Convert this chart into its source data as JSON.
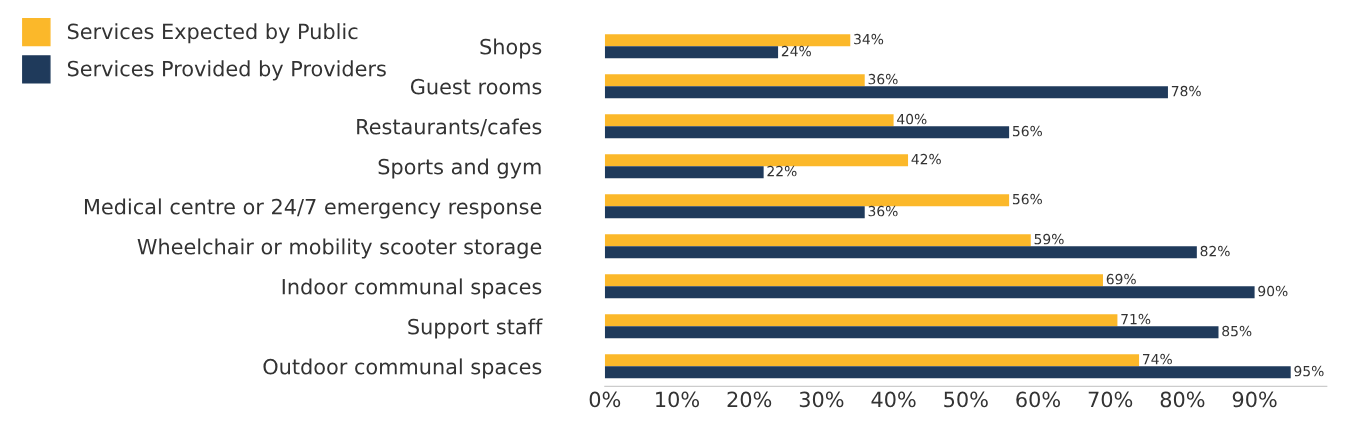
{
  "chart_data": {
    "type": "bar",
    "orientation": "horizontal",
    "categories": [
      "Shops",
      "Guest rooms",
      "Restaurants/cafes",
      "Sports and gym",
      "Medical centre or 24/7 emergency response",
      "Wheelchair or mobility scooter storage",
      "Indoor communal spaces",
      "Support staff",
      "Outdoor communal spaces"
    ],
    "series": [
      {
        "name": "Services Expected by Public",
        "color": "#fbb82a",
        "values": [
          34,
          36,
          40,
          42,
          56,
          59,
          69,
          71,
          74
        ],
        "value_labels": [
          "34%",
          "36%",
          "40%",
          "42%",
          "56%",
          "59%",
          "69%",
          "71%",
          "74%"
        ]
      },
      {
        "name": "Services Provided by Providers",
        "color": "#1f3a5b",
        "values": [
          24,
          78,
          56,
          22,
          36,
          82,
          90,
          85,
          95
        ],
        "value_labels": [
          "24%",
          "78%",
          "56%",
          "22%",
          "36%",
          "82%",
          "90%",
          "85%",
          "95%"
        ]
      }
    ],
    "xlim": [
      0,
      100
    ],
    "xticks": [
      {
        "value": 0,
        "label": "0%"
      },
      {
        "value": 10,
        "label": "10%"
      },
      {
        "value": 20,
        "label": "20%"
      },
      {
        "value": 30,
        "label": "30%"
      },
      {
        "value": 40,
        "label": "40%"
      },
      {
        "value": 50,
        "label": "50%"
      },
      {
        "value": 60,
        "label": "60%"
      },
      {
        "value": 70,
        "label": "70%"
      },
      {
        "value": 80,
        "label": "80%"
      },
      {
        "value": 90,
        "label": "90%"
      }
    ],
    "legend": "top left",
    "grid": false
  }
}
